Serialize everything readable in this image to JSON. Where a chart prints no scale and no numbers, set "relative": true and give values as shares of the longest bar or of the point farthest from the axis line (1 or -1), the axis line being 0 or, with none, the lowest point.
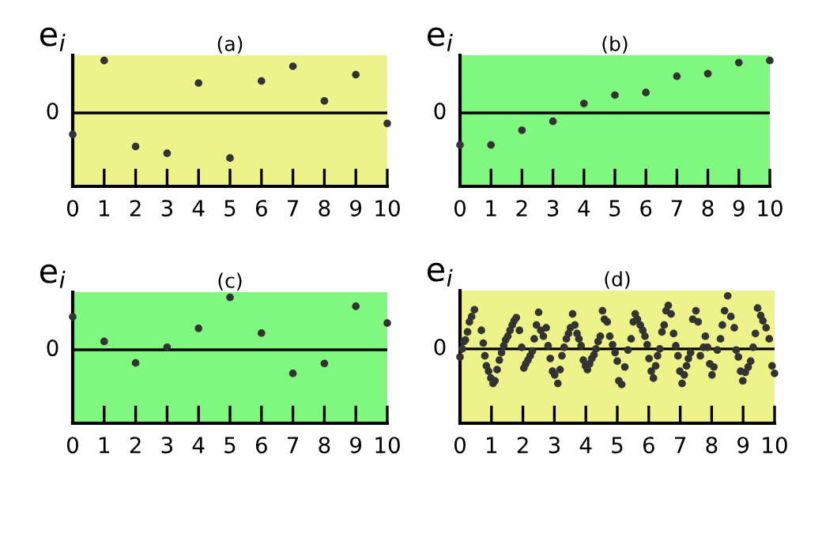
{
  "chart_data": [
    {
      "type": "scatter",
      "title": "(a)",
      "ylabel": "e$_{i}$",
      "annotations": [
        "0"
      ],
      "relative": true,
      "marker": "circle",
      "grid": false,
      "xlim": [
        0,
        10
      ],
      "xticks": [
        0,
        1,
        2,
        3,
        4,
        5,
        6,
        7,
        8,
        9,
        10
      ],
      "x": [
        0,
        1,
        2,
        3,
        4,
        5,
        6,
        7,
        8,
        9,
        10
      ],
      "series": [
        {
          "color": "#333333",
          "values": [
            -0.41,
            1,
            -0.64,
            -0.77,
            0.57,
            -0.86,
            0.61,
            0.89,
            0.23,
            0.73,
            -0.2
          ]
        }
      ]
    },
    {
      "type": "scatter",
      "title": "(b)",
      "ylabel": "e$_{i}$",
      "annotations": [
        "0"
      ],
      "relative": true,
      "marker": "circle",
      "grid": false,
      "xlim": [
        0,
        10
      ],
      "xticks": [
        0,
        1,
        2,
        3,
        4,
        5,
        6,
        7,
        8,
        9,
        10
      ],
      "x": [
        0,
        1,
        2,
        3,
        4,
        5,
        6,
        7,
        8,
        9,
        10
      ],
      "series": [
        {
          "color": "#333333",
          "values": [
            -0.61,
            -0.61,
            -0.33,
            -0.16,
            0.18,
            0.34,
            0.39,
            0.7,
            0.75,
            0.96,
            1
          ]
        }
      ]
    },
    {
      "type": "scatter",
      "title": "(c)",
      "ylabel": "e$_{i}$",
      "annotations": [
        "0"
      ],
      "relative": true,
      "marker": "circle",
      "grid": false,
      "xlim": [
        0,
        10
      ],
      "xticks": [
        0,
        1,
        2,
        3,
        4,
        5,
        6,
        7,
        8,
        9,
        10
      ],
      "x": [
        0,
        1,
        2,
        3,
        4,
        5,
        6,
        7,
        8,
        9,
        10
      ],
      "series": [
        {
          "color": "#333333",
          "values": [
            0.63,
            0.16,
            -0.25,
            0.05,
            0.41,
            1,
            0.32,
            -0.45,
            -0.26,
            0.83,
            0.51
          ]
        }
      ]
    },
    {
      "type": "scatter",
      "title": "(d)",
      "ylabel": "e$_{i}$",
      "annotations": [
        "0"
      ],
      "relative": true,
      "marker": "circle",
      "grid": false,
      "xlim": [
        0,
        10
      ],
      "xticks": [
        0,
        1,
        2,
        3,
        4,
        5,
        6,
        7,
        8,
        9,
        10
      ],
      "x": [
        0,
        0.07,
        0.12,
        0.17,
        0.24,
        0.3,
        0.37,
        0.46,
        0.68,
        0.74,
        0.79,
        0.84,
        0.91,
        0.98,
        1.05,
        1.11,
        1.18,
        1.25,
        1.32,
        1.39,
        1.45,
        1.52,
        1.59,
        1.66,
        1.72,
        1.79,
        1.89,
        1.96,
        2.03,
        2.09,
        2.16,
        2.23,
        2.3,
        2.36,
        2.43,
        2.5,
        2.57,
        2.65,
        2.74,
        2.8,
        2.87,
        2.94,
        3.01,
        3.11,
        3.18,
        3.24,
        3.31,
        3.38,
        3.45,
        3.51,
        3.58,
        3.65,
        3.72,
        3.78,
        3.85,
        3.92,
        3.99,
        4.05,
        4.12,
        4.19,
        4.26,
        4.32,
        4.39,
        4.46,
        4.53,
        4.59,
        4.68,
        4.76,
        4.85,
        4.93,
        5.0,
        5.05,
        5.14,
        5.24,
        5.34,
        5.44,
        5.51,
        5.57,
        5.64,
        5.73,
        5.81,
        5.88,
        5.95,
        6.01,
        6.08,
        6.15,
        6.22,
        6.28,
        6.35,
        6.42,
        6.49,
        6.55,
        6.62,
        6.71,
        6.79,
        6.86,
        6.93,
        6.99,
        7.06,
        7.13,
        7.2,
        7.26,
        7.33,
        7.4,
        7.5,
        7.57,
        7.64,
        7.74,
        7.8,
        7.87,
        7.94,
        8.01,
        8.07,
        8.18,
        8.28,
        8.34,
        8.41,
        8.51,
        8.61,
        8.72,
        8.78,
        8.85,
        8.92,
        8.99,
        9.07,
        9.16,
        9.24,
        9.32,
        9.39,
        9.46,
        9.56,
        9.63,
        9.73,
        9.83,
        9.92,
        10.0
      ],
      "series": [
        {
          "color": "#333333",
          "values": [
            -0.15,
            0,
            0.14,
            0.17,
            0.32,
            0.51,
            0.61,
            0.74,
            0.35,
            0.11,
            -0.13,
            -0.32,
            -0.42,
            -0.55,
            -0.65,
            -0.6,
            -0.39,
            -0.21,
            -0.07,
            0.06,
            0.17,
            0.24,
            0.35,
            0.45,
            0.53,
            0.59,
            0.35,
            0.03,
            -0.36,
            -0.28,
            -0.21,
            -0.13,
            -0.04,
            0.19,
            0.45,
            0.69,
            0.35,
            0.24,
            0.4,
            0.06,
            -0.18,
            -0.42,
            -0.49,
            -0.65,
            -0.39,
            -0.13,
            0.03,
            0.19,
            0.29,
            0.4,
            0.66,
            0.45,
            0.29,
            0.19,
            0.06,
            -0.21,
            -0.32,
            -0.39,
            -0.28,
            -0.18,
            -0.11,
            0,
            0.14,
            0.24,
            0.72,
            0.56,
            0.51,
            0.24,
            0.08,
            -0.07,
            -0.23,
            -0.6,
            -0.67,
            -0.34,
            -0.02,
            0.19,
            0.51,
            0.66,
            0.56,
            0.45,
            0.35,
            0.24,
            0.08,
            -0.18,
            -0.42,
            -0.55,
            -0.32,
            -0.13,
            0,
            0.32,
            0.45,
            0.72,
            0.82,
            0.66,
            0.29,
            0.06,
            -0.13,
            -0.42,
            -0.65,
            -0.49,
            -0.32,
            -0.18,
            -0.07,
            0.56,
            0.72,
            0.51,
            -0.13,
            0.03,
            0.24,
            0.03,
            -0.28,
            -0.49,
            -0.34,
            -0.02,
            0.19,
            0.45,
            0.72,
            1,
            0.61,
            0.4,
            -0.02,
            -0.15,
            -0.42,
            -0.6,
            -0.44,
            -0.34,
            -0.23,
            0.03,
            0.29,
            0.77,
            0.63,
            0.53,
            0.4,
            0.19,
            -0.32,
            -0.46
          ]
        }
      ]
    }
  ]
}
